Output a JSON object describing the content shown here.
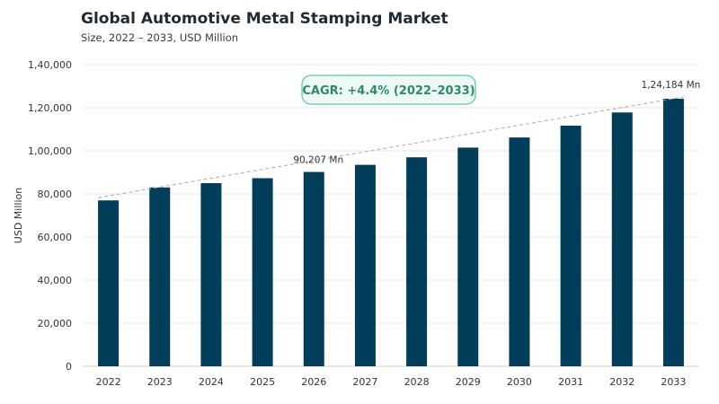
{
  "chart_data": {
    "type": "bar",
    "title": "Global Automotive Metal Stamping Market",
    "subtitle": "Size, 2022 – 2033, USD Million",
    "xlabel": "",
    "ylabel": "USD Million",
    "categories": [
      "2022",
      "2023",
      "2024",
      "2025",
      "2026",
      "2027",
      "2028",
      "2029",
      "2030",
      "2031",
      "2032",
      "2033"
    ],
    "values": [
      77000,
      83000,
      85000,
      87300,
      90207,
      93500,
      97000,
      101500,
      106200,
      111700,
      117800,
      124184
    ],
    "ylim": [
      0,
      140000
    ],
    "yticks": [
      "0",
      "20,000",
      "40,000",
      "60,000",
      "80,000",
      "1,00,000",
      "1,20,000",
      "1,40,000"
    ],
    "ytick_values": [
      0,
      20000,
      40000,
      60000,
      80000,
      100000,
      120000,
      140000
    ],
    "data_labels": [
      {
        "category": "2026",
        "text": "90,207 Mn"
      },
      {
        "category": "2033",
        "text": "1,24,184 Mn"
      }
    ],
    "annotation": "CAGR: +4.4% (2022–2033)",
    "trend_line": true,
    "grid": "horizontal",
    "colors": {
      "bar": "#023e5a",
      "grid": "#e6e6e6",
      "trend": "#aaaaaa",
      "cagr_border": "#5cc7a0",
      "cagr_fill": "#eef8f4",
      "cagr_text": "#2a8c66"
    }
  }
}
